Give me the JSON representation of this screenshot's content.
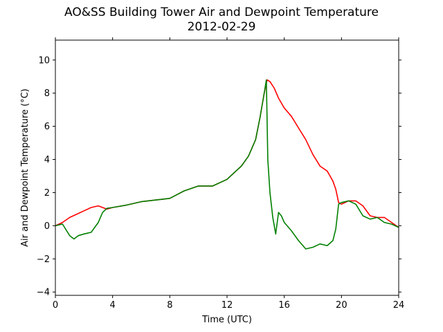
{
  "chart_data": {
    "type": "line",
    "title": "AO&SS Building Tower Air and Dewpoint Temperature",
    "subtitle": "2012-02-29",
    "xlabel": "Time (UTC)",
    "ylabel": "Air and Dewpoint Temperature (°C)",
    "xlim": [
      0,
      24
    ],
    "ylim": [
      -4.2,
      11.2
    ],
    "xticks": [
      0,
      4,
      8,
      12,
      16,
      20,
      24
    ],
    "yticks": [
      -4,
      -2,
      0,
      2,
      4,
      6,
      8,
      10
    ],
    "grid": false,
    "series": [
      {
        "color": "#ff0000",
        "x": [
          0,
          0.5,
          1,
          1.5,
          2,
          2.5,
          3,
          3.3,
          3.6,
          4,
          5,
          6,
          7,
          8,
          9,
          10,
          11,
          12,
          12.5,
          13,
          13.5,
          14,
          14.3,
          14.6,
          14.8,
          15,
          15.3,
          15.6,
          16,
          16.5,
          17,
          17.5,
          18,
          18.5,
          19,
          19.4,
          19.6,
          19.8,
          20,
          20.5,
          21,
          21.5,
          22,
          22.5,
          23,
          23.5,
          24
        ],
        "values": [
          0,
          0.2,
          0.5,
          0.7,
          0.9,
          1.1,
          1.2,
          1.1,
          1.0,
          1.1,
          1.25,
          1.45,
          1.55,
          1.65,
          2.1,
          2.4,
          2.4,
          2.8,
          3.2,
          3.6,
          4.2,
          5.2,
          6.5,
          8.0,
          8.8,
          8.7,
          8.3,
          7.7,
          7.1,
          6.6,
          5.9,
          5.2,
          4.3,
          3.6,
          3.3,
          2.7,
          2.2,
          1.4,
          1.3,
          1.5,
          1.5,
          1.2,
          0.6,
          0.5,
          0.5,
          0.2,
          -0.1
        ]
      },
      {
        "color": "#008000",
        "x": [
          0,
          0.5,
          1,
          1.3,
          1.6,
          2,
          2.5,
          3,
          3.3,
          3.6,
          4,
          5,
          6,
          7,
          8,
          9,
          10,
          11,
          12,
          12.5,
          13,
          13.5,
          14,
          14.3,
          14.6,
          14.75,
          14.85,
          15,
          15.2,
          15.4,
          15.6,
          15.8,
          16,
          16.5,
          17,
          17.5,
          18,
          18.5,
          19,
          19.4,
          19.6,
          19.8,
          20,
          20.5,
          21,
          21.5,
          22,
          22.5,
          23,
          23.5,
          24
        ],
        "values": [
          0,
          0.1,
          -0.6,
          -0.8,
          -0.6,
          -0.5,
          -0.4,
          0.2,
          0.8,
          1.05,
          1.1,
          1.25,
          1.45,
          1.55,
          1.65,
          2.1,
          2.4,
          2.4,
          2.8,
          3.2,
          3.6,
          4.2,
          5.2,
          6.5,
          8.0,
          8.8,
          4.0,
          2.0,
          0.5,
          -0.5,
          0.8,
          0.6,
          0.2,
          -0.3,
          -0.9,
          -1.4,
          -1.3,
          -1.1,
          -1.2,
          -0.9,
          -0.2,
          1.3,
          1.4,
          1.5,
          1.3,
          0.6,
          0.4,
          0.5,
          0.2,
          0.1,
          -0.1
        ]
      }
    ]
  }
}
